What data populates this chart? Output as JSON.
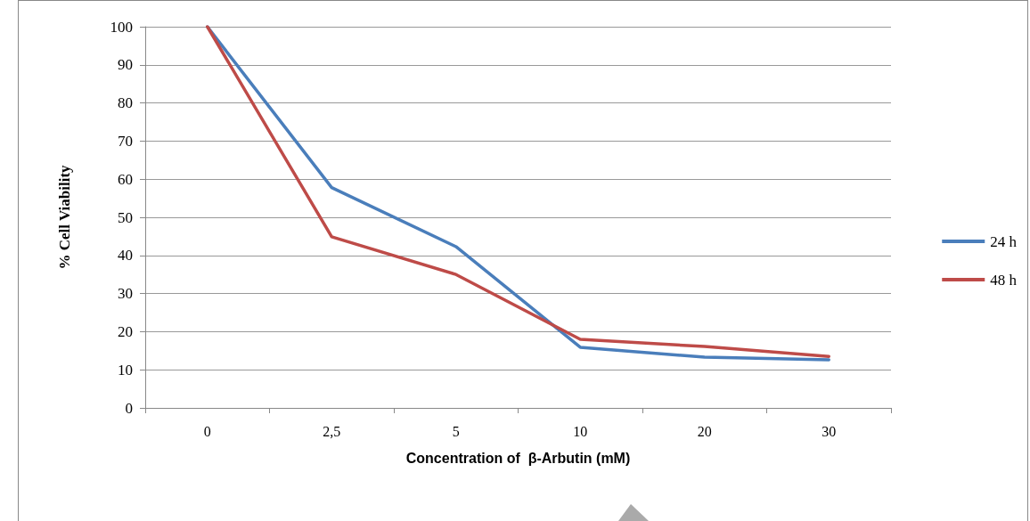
{
  "chart_data": {
    "type": "line",
    "xlabel": "Concentration of  β-Arbutin (mM)",
    "ylabel": "% Cell Viability",
    "categories": [
      "0",
      "2,5",
      "5",
      "10",
      "20",
      "30"
    ],
    "series": [
      {
        "name": "24 h",
        "color": "#4a7ebb",
        "values": [
          100,
          57.8,
          42.3,
          15.9,
          13.3,
          12.6
        ]
      },
      {
        "name": "48 h",
        "color": "#be4b48",
        "values": [
          100,
          44.9,
          35.0,
          18.0,
          16.1,
          13.5
        ]
      }
    ],
    "ylim": [
      0,
      100
    ],
    "yticks": [
      0,
      10,
      20,
      30,
      40,
      50,
      60,
      70,
      80,
      90,
      100
    ],
    "grid": "y",
    "legend": "right",
    "marker": "none",
    "line_style": "solid"
  }
}
